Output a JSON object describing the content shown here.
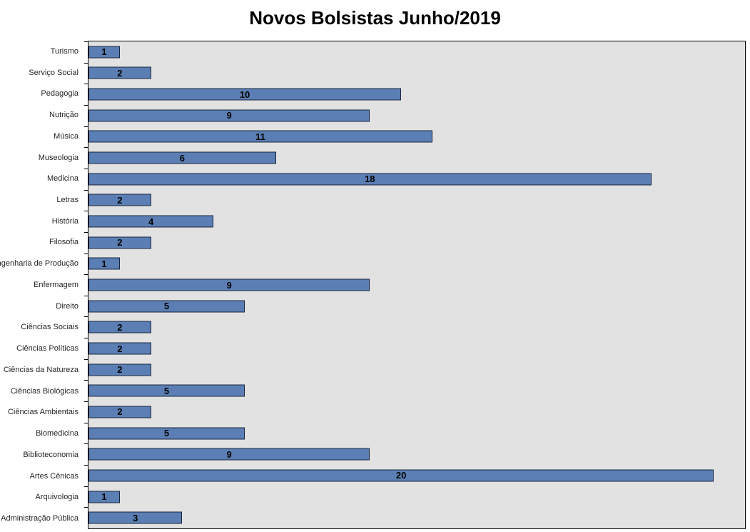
{
  "chart_data": {
    "type": "bar",
    "orientation": "horizontal",
    "title": "Novos Bolsistas Junho/2019",
    "xlabel": "",
    "ylabel": "",
    "categories": [
      "Turismo",
      "Serviço Social",
      "Pedagogia",
      "Nutrição",
      "Música",
      "Museologia",
      "Medicina",
      "Letras",
      "História",
      "Filosofia",
      "Engenharia de Produção",
      "Enfermagem",
      "Direito",
      "Ciências Sociais",
      "Ciências Políticas",
      "Ciências da Natureza",
      "Ciências Biológicas",
      "Ciências Ambientais",
      "Biomedicina",
      "Biblioteconomia",
      "Artes Cênicas",
      "Arquivologia",
      "Administração Pública"
    ],
    "values": [
      1,
      2,
      10,
      9,
      11,
      6,
      18,
      2,
      4,
      2,
      1,
      9,
      5,
      2,
      2,
      2,
      5,
      2,
      5,
      9,
      20,
      1,
      3
    ],
    "xlim": [
      0,
      21
    ],
    "grid": false,
    "legend": false,
    "data_labels_position": "center-inside-bar",
    "colors": {
      "bar_fill": "#5b7fb4",
      "bar_border": "#1a2740",
      "plot_background": "#e2e2e2",
      "plot_border": "#000000",
      "title_text": "#000000",
      "category_text": "#262626",
      "value_text": "#000000"
    }
  }
}
